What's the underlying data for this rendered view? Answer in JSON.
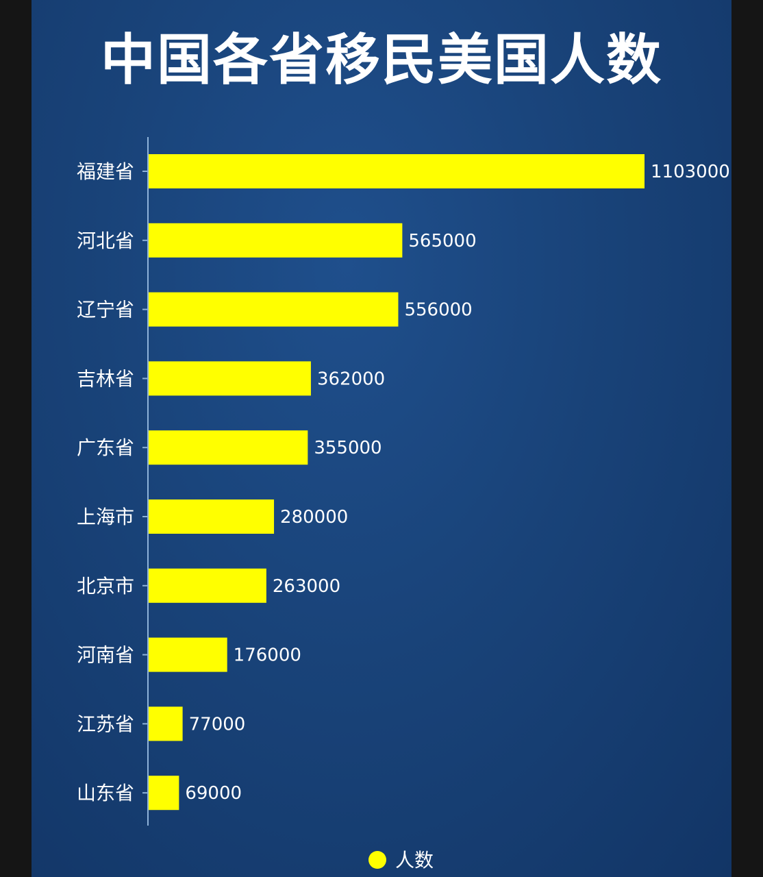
{
  "chart_data": {
    "type": "bar",
    "orientation": "horizontal",
    "title": "中国各省移民美国人数",
    "categories": [
      "福建省",
      "河北省",
      "辽宁省",
      "吉林省",
      "广东省",
      "上海市",
      "北京市",
      "河南省",
      "江苏省",
      "山东省"
    ],
    "series": [
      {
        "name": "人数",
        "values": [
          1103000,
          565000,
          556000,
          362000,
          355000,
          280000,
          263000,
          176000,
          77000,
          69000
        ]
      }
    ],
    "value_labels": [
      "1103000",
      "565000",
      "556000",
      "362000",
      "355000",
      "280000",
      "263000",
      "176000",
      "77000",
      "69000"
    ],
    "xlim": [
      0,
      1103000
    ],
    "grid": false,
    "legend_position": "bottom-center",
    "colors": {
      "bar": "#ffff00",
      "axis": "#8fb3d9",
      "text": "#ffffff"
    }
  }
}
